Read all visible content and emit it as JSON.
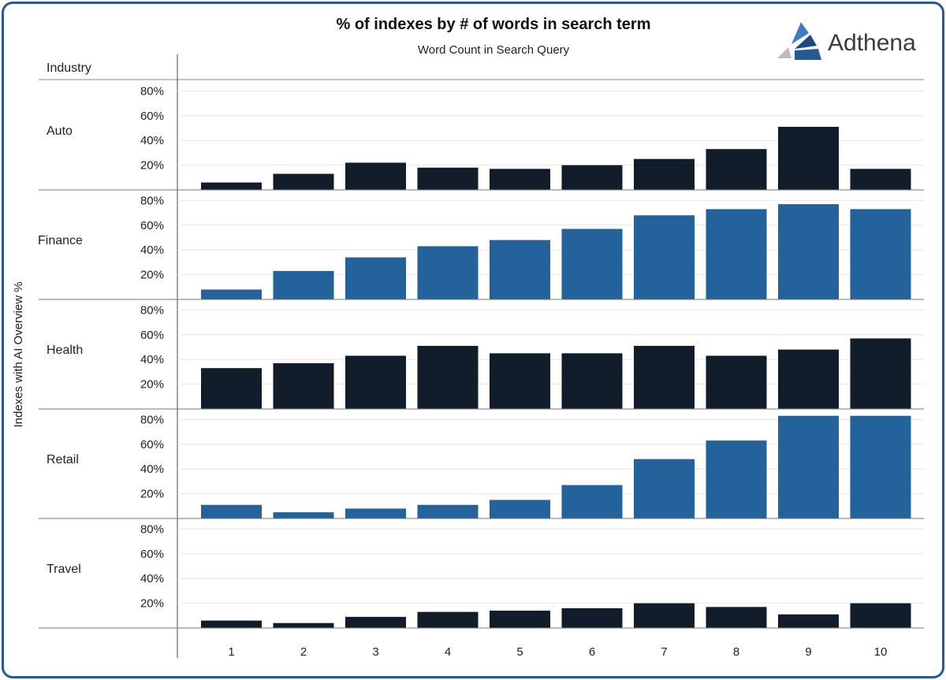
{
  "chart_data": {
    "type": "bar",
    "title": "% of indexes by # of words in search term",
    "subtitle": "Word Count in Search Query",
    "ylabel": "Indexes with AI Overview %",
    "row_header": "Industry",
    "categories": [
      "1",
      "2",
      "3",
      "4",
      "5",
      "6",
      "7",
      "8",
      "9",
      "10"
    ],
    "y_ticks": [
      "20%",
      "40%",
      "60%",
      "80%"
    ],
    "ylim": [
      0,
      85
    ],
    "grid": true,
    "series": [
      {
        "name": "Auto",
        "color": "#111d2b",
        "values": [
          6,
          13,
          22,
          18,
          17,
          20,
          25,
          33,
          51,
          17
        ]
      },
      {
        "name": "Finance",
        "color": "#24629c",
        "values": [
          8,
          23,
          34,
          43,
          48,
          57,
          68,
          73,
          77,
          73
        ]
      },
      {
        "name": "Health",
        "color": "#111d2b",
        "values": [
          33,
          37,
          43,
          51,
          45,
          45,
          51,
          43,
          48,
          57
        ]
      },
      {
        "name": "Retail",
        "color": "#24629c",
        "values": [
          11,
          5,
          8,
          11,
          15,
          27,
          48,
          63,
          83,
          83
        ]
      },
      {
        "name": "Travel",
        "color": "#111d2b",
        "values": [
          6,
          4,
          9,
          13,
          14,
          16,
          20,
          17,
          11,
          20
        ]
      }
    ]
  },
  "logo": {
    "text": "Adthena"
  }
}
